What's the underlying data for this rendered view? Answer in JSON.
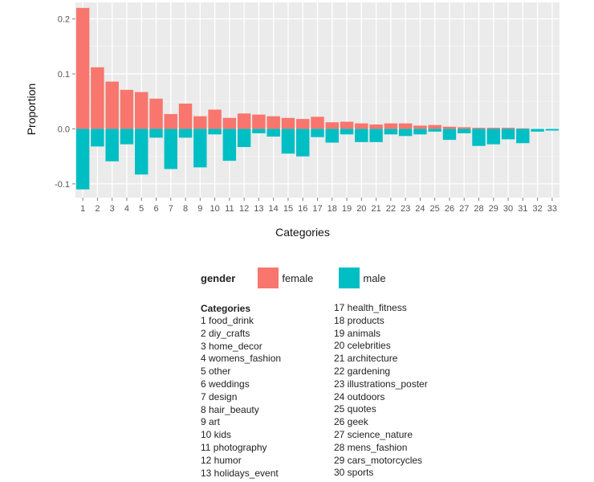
{
  "chart_data": {
    "type": "bar",
    "xlabel": "Categories",
    "ylabel": "Proportion",
    "ylim": [
      -0.125,
      0.23
    ],
    "yticks": [
      0.2,
      0.1,
      0.0,
      -0.1
    ],
    "ytick_labels": [
      "0.2",
      "0.1",
      "0.0",
      "-0.1"
    ],
    "grid": true,
    "categories": [
      "1",
      "2",
      "3",
      "4",
      "5",
      "6",
      "7",
      "8",
      "9",
      "10",
      "11",
      "12",
      "13",
      "14",
      "15",
      "16",
      "17",
      "18",
      "19",
      "20",
      "21",
      "22",
      "23",
      "24",
      "25",
      "26",
      "27",
      "28",
      "29",
      "30",
      "31",
      "32",
      "33"
    ],
    "series": [
      {
        "name": "female",
        "color": "#F8766D",
        "values": [
          0.22,
          0.112,
          0.086,
          0.071,
          0.067,
          0.055,
          0.027,
          0.046,
          0.023,
          0.035,
          0.02,
          0.028,
          0.026,
          0.023,
          0.02,
          0.018,
          0.022,
          0.012,
          0.013,
          0.01,
          0.008,
          0.01,
          0.01,
          0.006,
          0.007,
          0.004,
          0.003,
          0.002,
          0.002,
          0.002,
          0.001,
          0.0,
          0.0
        ]
      },
      {
        "name": "male",
        "color": "#00BFC4",
        "values": [
          -0.11,
          -0.032,
          -0.059,
          -0.028,
          -0.083,
          -0.016,
          -0.073,
          -0.016,
          -0.07,
          -0.01,
          -0.058,
          -0.033,
          -0.008,
          -0.014,
          -0.045,
          -0.05,
          -0.015,
          -0.025,
          -0.01,
          -0.024,
          -0.024,
          -0.01,
          -0.013,
          -0.01,
          -0.005,
          -0.02,
          -0.008,
          -0.031,
          -0.028,
          -0.019,
          -0.026,
          -0.005,
          -0.003
        ]
      }
    ]
  },
  "legend": {
    "title": "gender",
    "items": [
      {
        "label": "female",
        "color": "#F8766D"
      },
      {
        "label": "male",
        "color": "#00BFC4"
      }
    ]
  },
  "category_key": {
    "heading": "Categories",
    "left": [
      "1 food_drink",
      "2 diy_crafts",
      "3 home_decor",
      "4 womens_fashion",
      "5 other",
      "6 weddings",
      "7 design",
      "8 hair_beauty",
      "9 art",
      "10 kids",
      "11 photography",
      "12 humor",
      "13 holidays_event"
    ],
    "right": [
      "17 health_fitness",
      "18 products",
      "19 animals",
      "20 celebrities",
      "21 architecture",
      "22 gardening",
      "23 illustrations_poster",
      "24 outdoors",
      "25 quotes",
      "26 geek",
      "27 science_nature",
      "28 mens_fashion",
      "29 cars_motorcycles",
      "30 sports"
    ]
  }
}
